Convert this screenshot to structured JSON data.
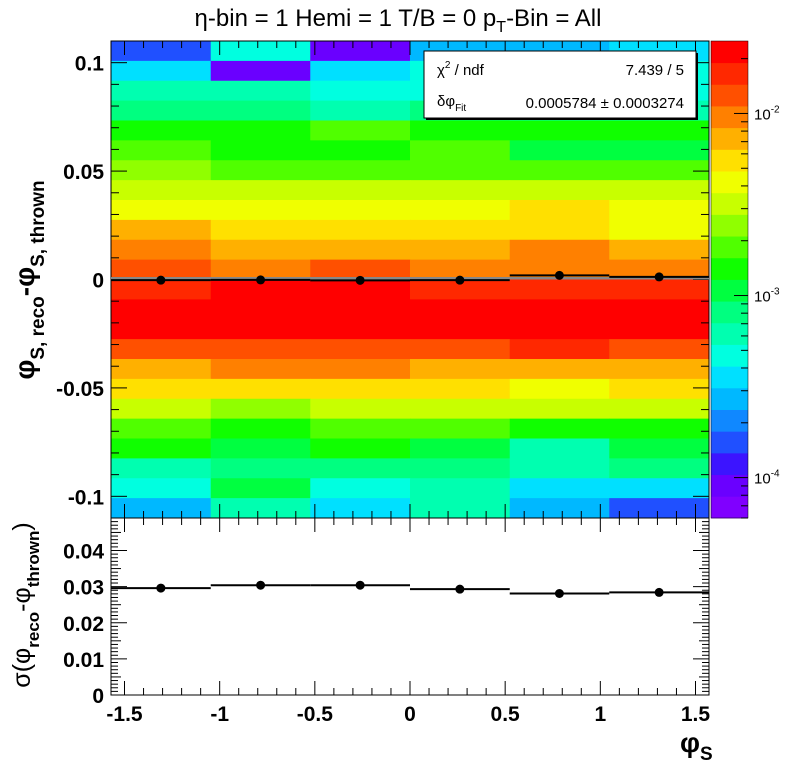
{
  "title_parts": {
    "eta": "η-bin = 1 Hemi = 1 T/B = 0 p",
    "sub": "T",
    "rest": "-Bin = All"
  },
  "top_ylabel": {
    "main1": "φ",
    "sub1": "S, reco",
    "mid": "-φ",
    "sub2": "S, thrown"
  },
  "bottom_ylabel": {
    "pre": "σ(φ",
    "sub1": "reco",
    "mid": "-φ",
    "sub2": "thrown",
    "post": ")"
  },
  "xlabel": {
    "main": "φ",
    "sub": "S"
  },
  "fit_box": {
    "chi2_label_main": "χ",
    "chi2_label_sup": "2",
    "chi2_label_rest": " / ndf",
    "chi2_value": "7.439 / 5",
    "dphi_label_main": "δφ",
    "dphi_label_sub": "Fit",
    "dphi_value": "0.0005784 ± 0.0003274"
  },
  "chart_data": [
    {
      "type": "heatmap",
      "x_edges": [
        -1.571,
        -1.047,
        -0.524,
        0.0,
        0.524,
        1.047,
        1.571
      ],
      "y_range": [
        -0.11,
        0.11
      ],
      "y_bins": 24,
      "xlim": [
        -1.571,
        1.571
      ],
      "ylim": [
        -0.11,
        0.11
      ],
      "y_ticks": [
        0.1,
        0.05,
        0,
        -0.05,
        -0.1
      ],
      "y_tick_labels": [
        "0.1",
        "0.05",
        "0",
        "-0.05",
        "-0.1"
      ],
      "color_scale": "log",
      "z_range": [
        6e-05,
        0.025
      ],
      "colorbar_ticks": [
        {
          "value": 0.01,
          "base": "10",
          "exp": "-2"
        },
        {
          "value": 0.001,
          "base": "10",
          "exp": "-3"
        },
        {
          "value": 0.0001,
          "base": "10",
          "exp": "-4"
        }
      ],
      "z_levels_by_row_from_top": [
        [
          3,
          7,
          1,
          5,
          5,
          6
        ],
        [
          6,
          1,
          6,
          7,
          6,
          7
        ],
        [
          8,
          8,
          7,
          7,
          8,
          7
        ],
        [
          9,
          9,
          8,
          9,
          8,
          8
        ],
        [
          11,
          11,
          12,
          11,
          11,
          11
        ],
        [
          12,
          11,
          11,
          12,
          10,
          10
        ],
        [
          13,
          12,
          12,
          12,
          12,
          12
        ],
        [
          14,
          14,
          14,
          14,
          14,
          14
        ],
        [
          15,
          15,
          15,
          15,
          16,
          15
        ],
        [
          17,
          16,
          16,
          16,
          16,
          15
        ],
        [
          18,
          17,
          17,
          17,
          18,
          17
        ],
        [
          19,
          18,
          19,
          18,
          18,
          18
        ],
        [
          20,
          21,
          21,
          20,
          20,
          20
        ],
        [
          21,
          22,
          21,
          21,
          21,
          21
        ],
        [
          21,
          22,
          22,
          21,
          21,
          21
        ],
        [
          19,
          19,
          19,
          19,
          20,
          19
        ],
        [
          17,
          18,
          18,
          17,
          17,
          17
        ],
        [
          16,
          16,
          16,
          16,
          15,
          16
        ],
        [
          14,
          13,
          14,
          14,
          14,
          14
        ],
        [
          12,
          11,
          12,
          12,
          11,
          11
        ],
        [
          11,
          10,
          11,
          10,
          8,
          10
        ],
        [
          8,
          9,
          9,
          9,
          8,
          9
        ],
        [
          7,
          10,
          7,
          8,
          6,
          6
        ],
        [
          5,
          8,
          6,
          8,
          5,
          3
        ]
      ],
      "profile": {
        "x": [
          -1.309,
          -0.785,
          -0.262,
          0.262,
          0.785,
          1.309
        ],
        "y": [
          -0.0003,
          -0.0002,
          -0.0004,
          -0.0003,
          0.0019,
          0.0012
        ]
      },
      "fit_line_y": 0.0005784
    },
    {
      "type": "scatter",
      "x_edges": [
        -1.571,
        -1.047,
        -0.524,
        0.0,
        0.524,
        1.047,
        1.571
      ],
      "x": [
        -1.309,
        -0.785,
        -0.262,
        0.262,
        0.785,
        1.309
      ],
      "y": [
        0.0296,
        0.0304,
        0.0304,
        0.0293,
        0.0281,
        0.0284
      ],
      "xlim": [
        -1.571,
        1.571
      ],
      "ylim": [
        0,
        0.049
      ],
      "y_ticks": [
        0,
        0.01,
        0.02,
        0.03,
        0.04
      ],
      "y_tick_labels": [
        "0",
        "0.01",
        "0.02",
        "0.03",
        "0.04"
      ],
      "x_ticks": [
        -1.5,
        -1,
        -0.5,
        0,
        0.5,
        1,
        1.5
      ],
      "x_tick_labels": [
        "-1.5",
        "-1",
        "-0.5",
        "0",
        "0.5",
        "1",
        "1.5"
      ]
    }
  ]
}
